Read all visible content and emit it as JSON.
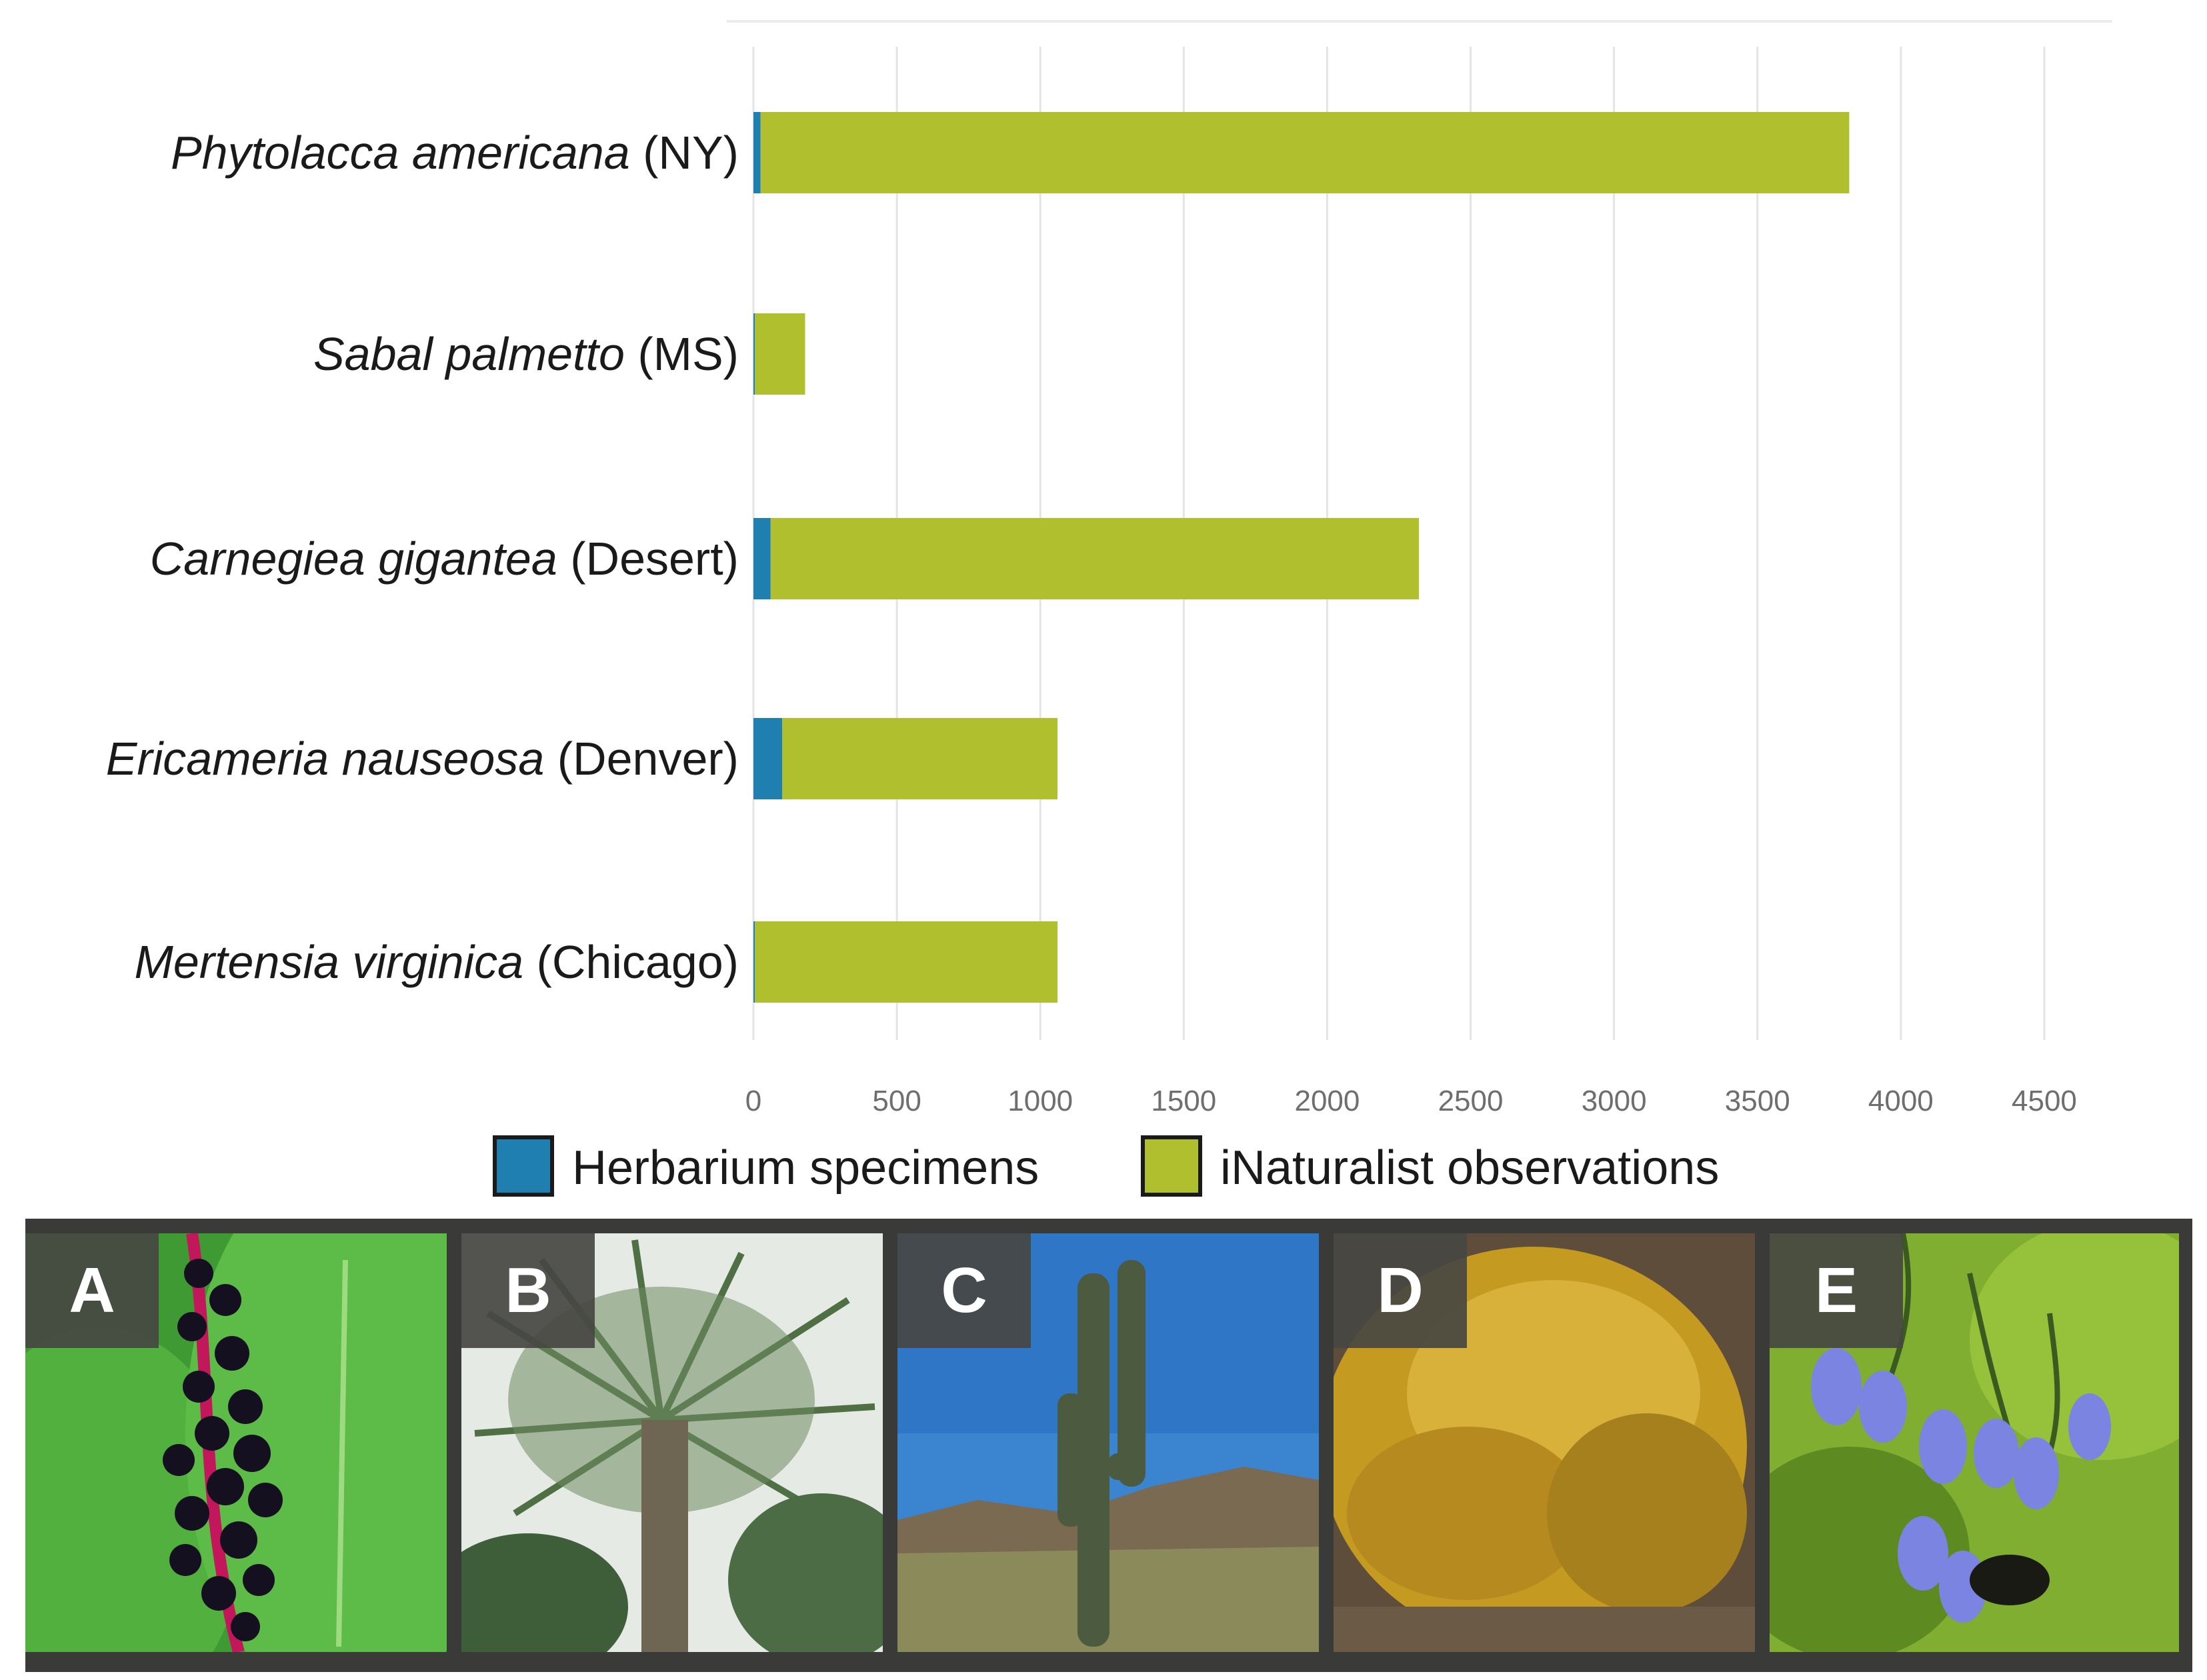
{
  "chart_data": {
    "type": "bar",
    "orientation": "horizontal",
    "stacked": true,
    "categories": [
      {
        "italic": "Phytolacca americana",
        "plain": "(NY)"
      },
      {
        "italic": "Sabal palmetto",
        "plain": "(MS)"
      },
      {
        "italic": "Carnegiea gigantea",
        "plain": "(Desert)"
      },
      {
        "italic": "Ericameria nauseosa",
        "plain": "(Denver)"
      },
      {
        "italic": "Mertensia virginica",
        "plain": "(Chicago)"
      }
    ],
    "series": [
      {
        "name": "Herbarium specimens",
        "color": "#1f7fb0",
        "values": [
          25,
          5,
          60,
          100,
          5
        ]
      },
      {
        "name": "iNaturalist observations",
        "color": "#afbf2d",
        "values": [
          3795,
          175,
          2260,
          960,
          1055
        ]
      }
    ],
    "x_ticks": [
      "0",
      "500",
      "1000",
      "1500",
      "2000",
      "2500",
      "3000",
      "3500",
      "4000",
      "4500"
    ],
    "xlim": [
      0,
      4700
    ],
    "grid": true,
    "legend_position": "bottom",
    "colors": {
      "herbarium": "#1f7fb0",
      "inaturalist": "#afbf2d",
      "gridline": "#e4e4e4"
    }
  },
  "photos": [
    {
      "letter": "A",
      "subject": "pokeweed-berries"
    },
    {
      "letter": "B",
      "subject": "palmetto-palm"
    },
    {
      "letter": "C",
      "subject": "saguaro-cactus"
    },
    {
      "letter": "D",
      "subject": "rabbitbrush-shrub"
    },
    {
      "letter": "E",
      "subject": "virginia-bluebells"
    }
  ]
}
